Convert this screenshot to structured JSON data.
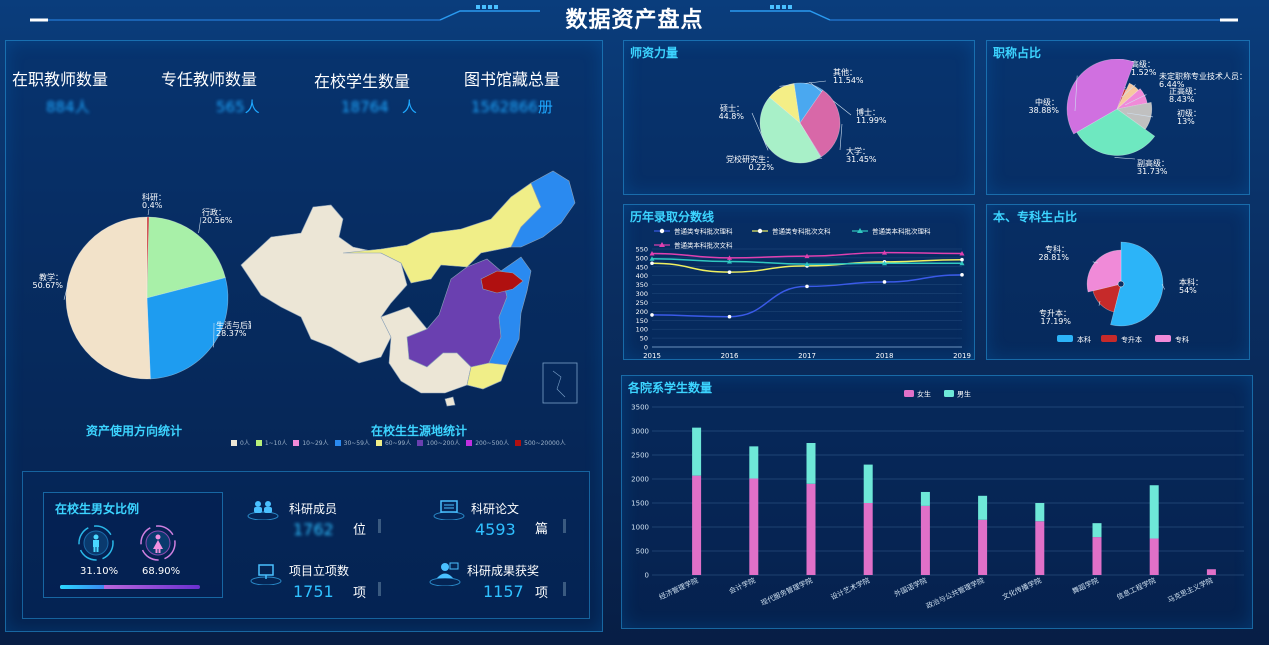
{
  "header": {
    "title": "数据资产盘点"
  },
  "stats": [
    {
      "label": "在职教师数量",
      "value": "884",
      "unit": "人"
    },
    {
      "label": "专任教师数量",
      "value": "565",
      "unit": "人"
    },
    {
      "label": "在校学生数量",
      "value": "18764",
      "unit": "人"
    },
    {
      "label": "图书馆藏总量",
      "value": "1562866",
      "unit": "册"
    }
  ],
  "asset_pie": {
    "caption": "资产使用方向统计",
    "slices": [
      {
        "name": "科研",
        "value": 0.4,
        "label": "科研：0.4%",
        "color": "#c62a2a"
      },
      {
        "name": "行政",
        "value": 20.56,
        "label": "行政：20.56%",
        "color": "#a8f0a8"
      },
      {
        "name": "生活与后勤",
        "value": 28.37,
        "label": "生活与后勤：28.37%",
        "color": "#1e9cf0"
      },
      {
        "name": "教学",
        "value": 50.67,
        "label": "教学：50.67%",
        "color": "#f2e2c9"
      }
    ]
  },
  "student_map": {
    "caption": "在校生生源地统计",
    "legend": [
      {
        "label": "0人",
        "color": "#ece6d6"
      },
      {
        "label": "1~10人",
        "color": "#b8f07a"
      },
      {
        "label": "10~29人",
        "color": "#f08ad8"
      },
      {
        "label": "30~59人",
        "color": "#2a8af0"
      },
      {
        "label": "60~99人",
        "color": "#f0ee88"
      },
      {
        "label": "100~200人",
        "color": "#6a40b0"
      },
      {
        "label": "200~500人",
        "color": "#c030e0"
      },
      {
        "label": "500~20000人",
        "color": "#b01010"
      }
    ]
  },
  "gender": {
    "title": "在校生男女比例",
    "male_pct": "31.10%",
    "female_pct": "68.90%",
    "male_ratio": 0.311,
    "male_icon": "male-icon",
    "female_icon": "female-icon"
  },
  "research": [
    {
      "label": "科研成员",
      "value": "1762",
      "unit": "位",
      "blurred": true,
      "icon": "team-icon"
    },
    {
      "label": "科研论文",
      "value": "4593",
      "unit": "篇",
      "blurred": false,
      "icon": "paper-icon"
    },
    {
      "label": "项目立项数",
      "value": "1751",
      "unit": "项",
      "blurred": false,
      "icon": "project-icon"
    },
    {
      "label": "科研成果获奖",
      "value": "1157",
      "unit": "项",
      "blurred": false,
      "icon": "award-icon"
    }
  ],
  "teacher_pie": {
    "title": "师资力量",
    "slices": [
      {
        "name": "其他",
        "value": 11.54,
        "label": "其他：11.54%",
        "color": "#f4ee86"
      },
      {
        "name": "博士",
        "value": 11.99,
        "label": "博士：11.99%",
        "color": "#4aa8f0"
      },
      {
        "name": "大学",
        "value": 31.45,
        "label": "大学：31.45%",
        "color": "#d868a8"
      },
      {
        "name": "党校研究生",
        "value": 0.22,
        "label": "党校研究生：0.22%",
        "color": "#6a40b0"
      },
      {
        "name": "硕士",
        "value": 44.8,
        "label": "硕士：44.8%",
        "color": "#a8f0c8"
      }
    ]
  },
  "title_pie": {
    "title": "职称占比",
    "slices": [
      {
        "name": "高级",
        "value": 1.52,
        "label": "高级：1.52%",
        "color": "#c62a2a"
      },
      {
        "name": "未定职称专业技术人员",
        "value": 6.44,
        "label": "未定职称专业技术人员：6.44%",
        "color": "#f6c9a0"
      },
      {
        "name": "正高级",
        "value": 8.43,
        "label": "正高级：8.43%",
        "color": "#f08ad8"
      },
      {
        "name": "初级",
        "value": 13.0,
        "label": "初级：13%",
        "color": "#c0c0c0"
      },
      {
        "name": "副高级",
        "value": 31.73,
        "label": "副高级：31.73%",
        "color": "#6ee8c0"
      },
      {
        "name": "中级",
        "value": 38.88,
        "label": "中级：38.88%",
        "color": "#d070e0"
      }
    ]
  },
  "degree_pie": {
    "title": "本、专科生占比",
    "slices": [
      {
        "name": "本科",
        "value": 54,
        "label": "本科：54%",
        "color": "#2cb4f8"
      },
      {
        "name": "专升本",
        "value": 17.19,
        "label": "专升本：17.19%",
        "color": "#c62a2a"
      },
      {
        "name": "专科",
        "value": 28.81,
        "label": "专科：28.81%",
        "color": "#f08ad8"
      }
    ],
    "legend": [
      "本科",
      "专升本",
      "专科"
    ]
  },
  "chart_data": [
    {
      "type": "line",
      "title": "历年录取分数线",
      "x": [
        "2015",
        "2016",
        "2017",
        "2018",
        "2019"
      ],
      "ylim": [
        0,
        550
      ],
      "yticks": [
        0,
        50,
        100,
        150,
        200,
        250,
        300,
        350,
        400,
        450,
        500,
        550
      ],
      "series": [
        {
          "name": "普通类专科批次理科",
          "values": [
            180,
            170,
            340,
            365,
            405
          ],
          "color": "#3a5ae8",
          "marker": "circle"
        },
        {
          "name": "普通类专科批次文科",
          "values": [
            470,
            420,
            455,
            478,
            490
          ],
          "color": "#f0f060",
          "marker": "circle"
        },
        {
          "name": "普通类本科批次理科",
          "values": [
            495,
            480,
            465,
            470,
            470
          ],
          "color": "#30c8c0",
          "marker": "triangle"
        },
        {
          "name": "普通类本科批次文科",
          "values": [
            525,
            500,
            510,
            530,
            525
          ],
          "color": "#e040b0",
          "marker": "triangle"
        }
      ]
    },
    {
      "type": "bar",
      "stacked": true,
      "title": "各院系学生数量",
      "categories": [
        "经济管理学院",
        "会计学院",
        "现代服务管理学院",
        "设计艺术学院",
        "外国语学院",
        "政治与公共管理学院",
        "文化传播学院",
        "舞蹈学院",
        "信息工程学院",
        "马克思主义学院"
      ],
      "ylim": [
        0,
        3500
      ],
      "yticks": [
        0,
        500,
        1000,
        1500,
        2000,
        2500,
        3000,
        3500
      ],
      "series": [
        {
          "name": "女生",
          "values": [
            2070,
            2010,
            1900,
            1500,
            1440,
            1150,
            1120,
            790,
            760,
            120
          ],
          "color": "#e070c8"
        },
        {
          "name": "男生",
          "values": [
            1000,
            670,
            850,
            800,
            290,
            500,
            380,
            290,
            1110,
            0
          ],
          "color": "#6ee8d8"
        }
      ]
    }
  ]
}
